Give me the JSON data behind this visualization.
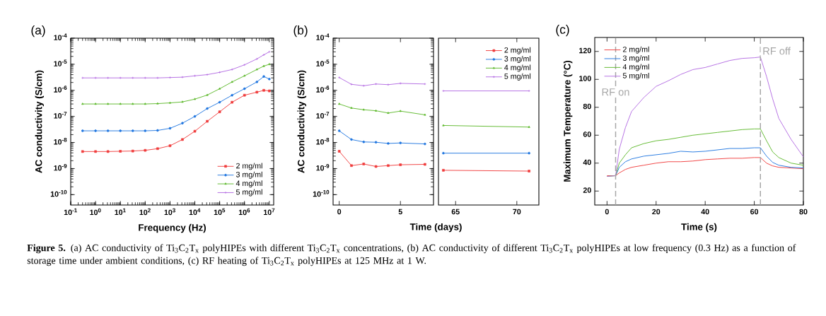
{
  "chart_data": [
    {
      "type": "line",
      "title": "(a)",
      "xlabel": "Frequency (Hz)",
      "ylabel": "AC conductivity (S/cm)",
      "log": "xy",
      "legend": "bottom right",
      "xlim": [
        0.1,
        15000000
      ],
      "ylim": [
        4e-11,
        0.0001
      ],
      "xticks": [
        {
          "value": 0.1,
          "label": "10$^{-1}$"
        },
        {
          "value": 1,
          "label": "10$^{0}$"
        },
        {
          "value": 10,
          "label": "10$^{1}$"
        },
        {
          "value": 100,
          "label": "10$^{2}$"
        },
        {
          "value": 1000,
          "label": "10$^{3}$"
        },
        {
          "value": 10000,
          "label": "10$^{4}$"
        },
        {
          "value": 100000,
          "label": "10$^{5}$"
        },
        {
          "value": 1000000,
          "label": "10$^{6}$"
        },
        {
          "value": 10000000,
          "label": "10$^{7}$"
        }
      ],
      "yticks": [
        {
          "value": 1e-10,
          "label": "10$^{-10}$"
        },
        {
          "value": 1e-09,
          "label": "10$^{-9}$"
        },
        {
          "value": 1e-08,
          "label": "10$^{-8}$"
        },
        {
          "value": 1e-07,
          "label": "10$^{-7}$"
        },
        {
          "value": 1e-06,
          "label": "10$^{-6}$"
        },
        {
          "value": 1e-05,
          "label": "10$^{-5}$"
        },
        {
          "value": 0.0001,
          "label": "10$^{-4}$"
        }
      ],
      "x": [
        0.3,
        1,
        3.16,
        10,
        31.6,
        100,
        316,
        1000,
        3160,
        10000,
        31600,
        100000,
        316000,
        1000000,
        3160000,
        6000000,
        10000000
      ],
      "series": [
        {
          "name": "2 mg/ml",
          "color": "#f03c3c",
          "marker": "square",
          "values": [
            4.5e-09,
            4.5e-09,
            4.5e-09,
            4.6e-09,
            4.7e-09,
            5e-09,
            5.8e-09,
            7.5e-09,
            1.3e-08,
            2.7e-08,
            6.5e-08,
            1.5e-07,
            3.5e-07,
            6.5e-07,
            8.5e-07,
            1e-06,
            9.5e-07
          ]
        },
        {
          "name": "3 mg/ml",
          "color": "#2076e0",
          "marker": "circle",
          "values": [
            2.8e-08,
            2.8e-08,
            2.8e-08,
            2.8e-08,
            2.8e-08,
            2.8e-08,
            2.9e-08,
            3.5e-08,
            5.5e-08,
            1e-07,
            2e-07,
            3.5e-07,
            6.5e-07,
            1.15e-06,
            2.1e-06,
            3.4e-06,
            2.7e-06
          ]
        },
        {
          "name": "4 mg/ml",
          "color": "#5cb82a",
          "marker": "triangle",
          "values": [
            3e-07,
            3e-07,
            3e-07,
            3e-07,
            3e-07,
            3e-07,
            3.1e-07,
            3.3e-07,
            3.6e-07,
            4.6e-07,
            6.6e-07,
            1.15e-06,
            2.1e-06,
            3.6e-06,
            6.3e-06,
            8.5e-06,
            1e-05
          ]
        },
        {
          "name": "5 mg/ml",
          "color": "#b36ae2",
          "marker": "cross",
          "values": [
            3e-06,
            3e-06,
            3e-06,
            3e-06,
            3e-06,
            3e-06,
            3e-06,
            3.1e-06,
            3.2e-06,
            3.6e-06,
            4e-06,
            4.9e-06,
            6.3e-06,
            9.5e-06,
            1.6e-05,
            2.3e-05,
            3e-05
          ]
        }
      ],
      "annotations": [
        "**Figure 5.** (a) AC conductivity of Ti$_{3}$C$_{2}$T$_{x}$ polyHIPEs with different Ti$_{3}$C$_{2}$T$_{x}$ concentrations, (b) AC conductivity of different Ti$_{3}$C$_{2}$T$_{x}$ polyHIPEs at low frequency (0.3 Hz) as a function of storage time under ambient conditions, (c) RF heating of Ti$_{3}$C$_{2}$T$_{x}$ polyHIPEs at 125 MHz at 1 W."
      ]
    },
    {
      "type": "line",
      "title": "(b)",
      "xlabel": "Time (days)",
      "ylabel": "AC conductivity (S/cm)",
      "log": "y",
      "xlim": [
        -0.5,
        7.7
      ],
      "ylim": [
        4e-11,
        0.0001
      ],
      "xticks": [
        0,
        5
      ],
      "yticks": [
        {
          "value": 1e-10,
          "label": "10$^{-10}$"
        },
        {
          "value": 1e-09,
          "label": "10$^{-9}$"
        },
        {
          "value": 1e-08,
          "label": "10$^{-8}$"
        },
        {
          "value": 1e-07,
          "label": "10$^{-7}$"
        },
        {
          "value": 1e-06,
          "label": "10$^{-6}$"
        },
        {
          "value": 1e-05,
          "label": "10$^{-5}$"
        },
        {
          "value": 0.0001,
          "label": "10$^{-4}$"
        }
      ],
      "x": [
        0,
        1,
        2,
        3,
        4,
        5,
        7
      ],
      "series": [
        {
          "color": "#f03c3c",
          "marker": "square",
          "values": [
            4.6e-09,
            1.3e-09,
            1.5e-09,
            1.2e-09,
            1.3e-09,
            1.4e-09,
            1.45e-09
          ]
        },
        {
          "color": "#2076e0",
          "marker": "circle",
          "values": [
            2.8e-08,
            1.3e-08,
            1.05e-08,
            1.02e-08,
            9.2e-09,
            9.6e-09,
            8.8e-09
          ]
        },
        {
          "color": "#5cb82a",
          "marker": "triangle",
          "values": [
            3e-07,
            2.1e-07,
            1.8e-07,
            1.65e-07,
            1.35e-07,
            1.6e-07,
            1.15e-07
          ]
        },
        {
          "color": "#b36ae2",
          "marker": "cross",
          "values": [
            3.1e-06,
            1.7e-06,
            1.5e-06,
            1.75e-06,
            1.65e-06,
            1.85e-06,
            1.75e-06
          ]
        }
      ]
    },
    {
      "type": "line",
      "log": "y",
      "tick_labels": "x",
      "legend": "top right",
      "xlim": [
        63.6,
        71.8
      ],
      "ylim": [
        4e-11,
        0.0001
      ],
      "xticks": [
        65,
        70
      ],
      "x": [
        64,
        71
      ],
      "series": [
        {
          "name": "2 mg/ml",
          "color": "#f03c3c",
          "marker": "square",
          "values": [
            8.6e-10,
            8e-10
          ]
        },
        {
          "name": "3 mg/ml",
          "color": "#2076e0",
          "marker": "circle",
          "values": [
            3.9e-09,
            3.9e-09
          ]
        },
        {
          "name": "4 mg/ml",
          "color": "#5cb82a",
          "marker": "triangle",
          "values": [
            4.5e-08,
            3.9e-08
          ]
        },
        {
          "name": "5 mg/ml",
          "color": "#b36ae2",
          "marker": "cross",
          "values": [
            9.5e-07,
            9.5e-07
          ]
        }
      ]
    },
    {
      "type": "line",
      "title": "(c)",
      "xlabel": "Time (s)",
      "ylabel": "Maximum Temperature (°C)",
      "legend": "top left",
      "marker": "none",
      "xlim": [
        -5,
        80
      ],
      "ylim": [
        10,
        130
      ],
      "xticks": [
        0,
        20,
        40,
        60,
        80
      ],
      "yticks": [
        20,
        40,
        60,
        80,
        100,
        120
      ],
      "x": [
        0,
        3.5,
        5,
        7.5,
        10,
        15,
        20,
        25,
        30,
        35,
        40,
        45,
        50,
        55,
        60,
        62.5,
        65,
        67.5,
        70,
        75,
        80
      ],
      "series": [
        {
          "name": "2 mg/ml",
          "color": "#f03c3c",
          "values": [
            31,
            31,
            33,
            35.5,
            37,
            38.5,
            40,
            41,
            41,
            41.5,
            42.5,
            43,
            43.5,
            43.5,
            44,
            44,
            40,
            38,
            37,
            36.5,
            36
          ]
        },
        {
          "name": "3 mg/ml",
          "color": "#2076e0",
          "values": [
            null,
            31,
            37,
            41,
            43,
            45,
            46,
            47,
            48.5,
            48,
            48.5,
            49.5,
            50.5,
            50.5,
            51,
            51,
            45,
            40.5,
            38.5,
            37,
            36.5
          ]
        },
        {
          "name": "4 mg/ml",
          "color": "#5cb82a",
          "values": [
            30.5,
            31,
            40,
            46,
            51,
            54,
            56,
            57,
            58.5,
            60,
            61,
            62,
            63,
            64,
            64.5,
            64.5,
            56,
            48,
            44,
            40,
            38.5
          ]
        },
        {
          "name": "5 mg/ml",
          "color": "#b36ae2",
          "values": [
            30.5,
            31,
            50,
            65.5,
            77,
            87,
            95,
            99,
            103.5,
            107,
            108.5,
            111,
            113.5,
            115,
            115.5,
            116,
            102,
            86,
            72,
            57,
            44.5
          ]
        }
      ],
      "ref_lines": [
        {
          "axis": "x",
          "value": 3.5,
          "label": "RF on",
          "color": "#a6a6a6",
          "line_style": "dashed"
        },
        {
          "axis": "x",
          "value": 62.5,
          "label": "RF off",
          "color": "#a6a6a6",
          "line_style": "dashed"
        }
      ]
    }
  ]
}
